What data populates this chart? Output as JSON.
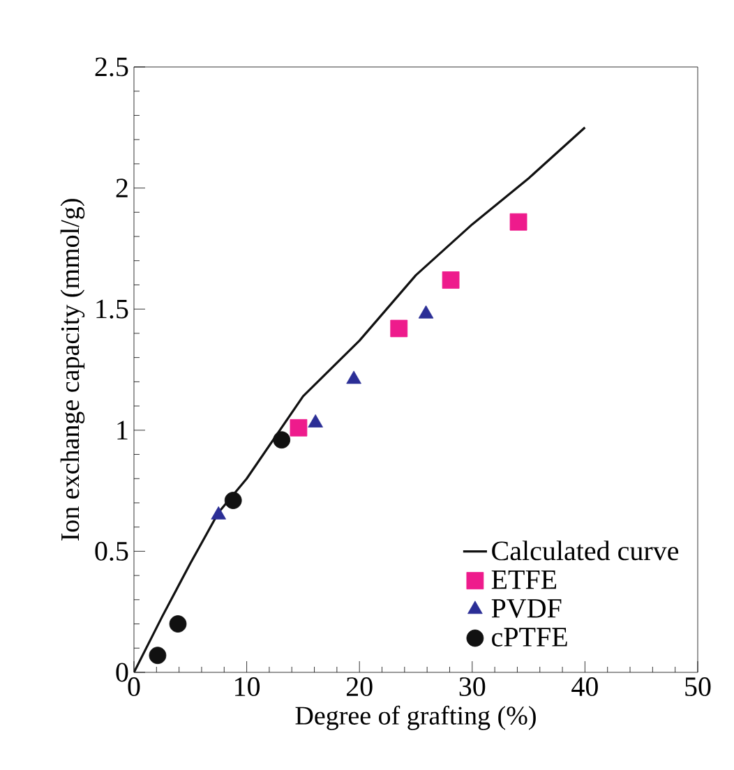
{
  "chart_data": {
    "type": "scatter",
    "xlabel": "Degree of grafting (%)",
    "ylabel": "Ion exchange capacity (mmol/g)",
    "xlim": [
      0,
      50
    ],
    "ylim": [
      0,
      2.5
    ],
    "xticks": [
      0,
      10,
      20,
      30,
      40,
      50
    ],
    "yticks": [
      0,
      0.5,
      1,
      1.5,
      2,
      2.5
    ],
    "grid": false,
    "legend": "bottom right",
    "series": [
      {
        "name": "Calculated curve",
        "type": "line",
        "color": "#111111",
        "marker": "none",
        "line_style": "solid",
        "x": [
          0,
          2.5,
          5,
          7.5,
          10,
          15,
          20,
          25,
          30,
          35,
          40
        ],
        "values": [
          0,
          0.23,
          0.45,
          0.66,
          0.8,
          1.14,
          1.37,
          1.64,
          1.85,
          2.04,
          2.25
        ]
      },
      {
        "name": "ETFE",
        "color": "#ee1b8c",
        "marker": "square",
        "x": [
          14.6,
          23.5,
          28.1,
          34.1
        ],
        "values": [
          1.01,
          1.42,
          1.62,
          1.86
        ]
      },
      {
        "name": "PVDF",
        "color": "#2b2e96",
        "marker": "triangle",
        "x": [
          7.5,
          16.1,
          19.5,
          25.9
        ],
        "values": [
          0.65,
          1.03,
          1.21,
          1.48
        ]
      },
      {
        "name": "cPTFE",
        "color": "#111111",
        "marker": "circle",
        "x": [
          2.1,
          3.9,
          8.8,
          13.1
        ],
        "values": [
          0.07,
          0.2,
          0.71,
          0.96
        ]
      }
    ]
  }
}
